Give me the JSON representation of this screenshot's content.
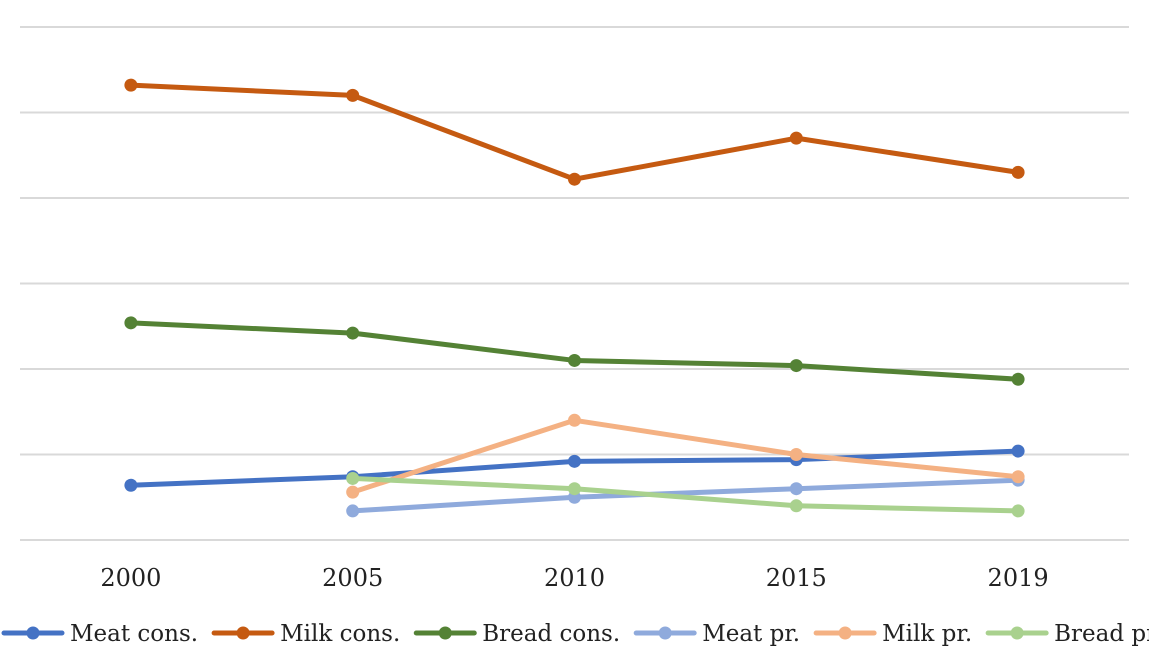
{
  "chart_data": {
    "type": "line",
    "title": "",
    "xlabel": "",
    "ylabel": "",
    "categories": [
      "2000",
      "2005",
      "2010",
      "2015",
      "2019"
    ],
    "ylim": [
      0,
      300
    ],
    "y_gridline_step": 50,
    "y_tick_labels_shown": false,
    "grid": true,
    "legend_position": "bottom",
    "series": [
      {
        "name": "Meat cons.",
        "color": "#4472C4",
        "values": [
          32,
          37,
          46,
          47,
          52
        ]
      },
      {
        "name": "Milk cons.",
        "color": "#C55A11",
        "values": [
          266,
          260,
          211,
          235,
          215
        ]
      },
      {
        "name": "Bread cons.",
        "color": "#548235",
        "values": [
          127,
          121,
          105,
          102,
          94
        ]
      },
      {
        "name": "Meat pr.",
        "color": "#8FAADC",
        "values": [
          null,
          17,
          25,
          30,
          35
        ]
      },
      {
        "name": "Milk pr.",
        "color": "#F4B183",
        "values": [
          null,
          28,
          70,
          50,
          37
        ]
      },
      {
        "name": "Bread pr.",
        "color": "#A9D18E",
        "values": [
          null,
          36,
          30,
          20,
          17
        ]
      }
    ]
  }
}
